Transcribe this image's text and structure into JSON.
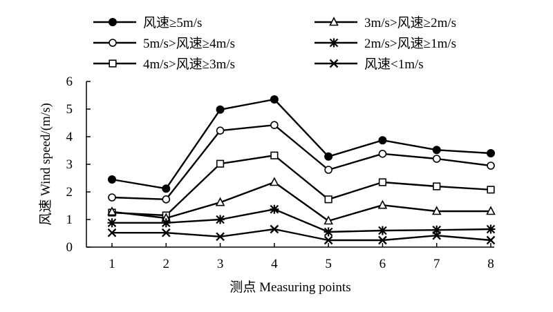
{
  "chart_data": {
    "type": "line",
    "title": "",
    "xlabel": "测点 Measuring points",
    "ylabel": "风速 Wind speed/(m/s)",
    "x": [
      1,
      2,
      3,
      4,
      5,
      6,
      7,
      8
    ],
    "xticks": [
      "1",
      "2",
      "3",
      "4",
      "5",
      "6",
      "7",
      "8"
    ],
    "ylim": [
      0,
      6
    ],
    "yticks": [
      "0",
      "1",
      "2",
      "3",
      "4",
      "5",
      "6"
    ],
    "grid": false,
    "legend_placement": "top",
    "series": [
      {
        "name": "风速≥5m/s",
        "marker": "filled-circle",
        "values": [
          2.45,
          2.12,
          4.98,
          5.35,
          3.28,
          3.87,
          3.52,
          3.4
        ]
      },
      {
        "name": "5m/s>风速≥4m/s",
        "marker": "open-circle",
        "values": [
          1.8,
          1.73,
          4.22,
          4.42,
          2.8,
          3.38,
          3.2,
          2.95
        ]
      },
      {
        "name": "4m/s>风速≥3m/s",
        "marker": "open-square",
        "values": [
          1.25,
          1.15,
          3.02,
          3.32,
          1.73,
          2.35,
          2.2,
          2.08
        ]
      },
      {
        "name": "3m/s>风速≥2m/s",
        "marker": "open-triangle",
        "values": [
          1.28,
          1.05,
          1.62,
          2.35,
          0.95,
          1.52,
          1.3,
          1.3
        ]
      },
      {
        "name": "2m/s>风速≥1m/s",
        "marker": "asterisk",
        "values": [
          0.88,
          0.88,
          1.0,
          1.37,
          0.55,
          0.6,
          0.62,
          0.65
        ]
      },
      {
        "name": "风速<1m/s",
        "marker": "x-cross",
        "values": [
          0.52,
          0.52,
          0.38,
          0.65,
          0.25,
          0.25,
          0.42,
          0.25
        ]
      }
    ]
  }
}
